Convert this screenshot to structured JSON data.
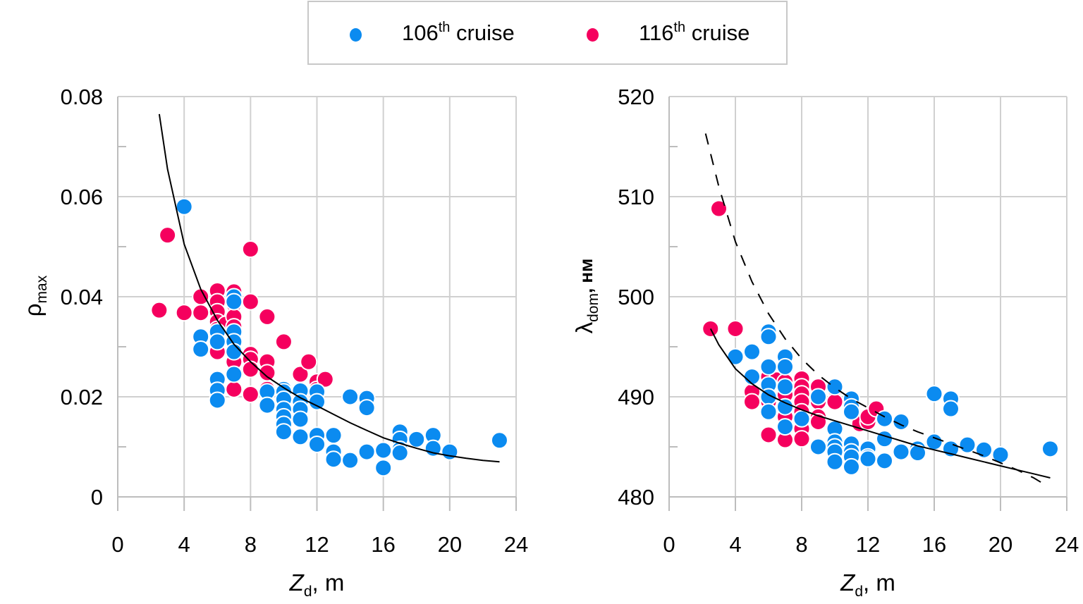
{
  "legend": {
    "items": [
      {
        "label_base": "106",
        "label_sup": "th",
        "label_rest": " cruise",
        "color": "#0b8bf0"
      },
      {
        "label_base": "116",
        "label_sup": "th",
        "label_rest": " cruise",
        "color": "#f5005e"
      }
    ]
  },
  "colors": {
    "series_106": "#0b8bf0",
    "series_116": "#f5005e",
    "grid": "#d0d0d0",
    "fit": "#000000"
  },
  "chart_data": [
    {
      "type": "scatter",
      "title": "",
      "xlabel": "Zd, m",
      "xlabel_main": "Z",
      "xlabel_sub": "d",
      "xlabel_unit": ", m",
      "ylabel": "ρmax",
      "ylabel_main": "ρ",
      "ylabel_sub": "max",
      "xlim": [
        0,
        24
      ],
      "ylim": [
        0,
        0.08
      ],
      "x_ticks": [
        0,
        4,
        8,
        12,
        16,
        20,
        24
      ],
      "x_tick_labels": [
        "0",
        "4",
        "8",
        "12",
        "16",
        "20",
        "24"
      ],
      "y_ticks": [
        0,
        0.02,
        0.04,
        0.06,
        0.08
      ],
      "y_tick_labels": [
        "0",
        "0.02",
        "0.04",
        "0.06",
        "0.08"
      ],
      "grid": true,
      "legend_position": "top-center",
      "series": [
        {
          "name": "106th cruise",
          "color": "#0b8bf0",
          "points": [
            [
              4,
              0.058
            ],
            [
              5,
              0.032
            ],
            [
              5,
              0.0295
            ],
            [
              6,
              0.033
            ],
            [
              6,
              0.031
            ],
            [
              6,
              0.0235
            ],
            [
              6,
              0.0213
            ],
            [
              6,
              0.0193
            ],
            [
              7,
              0.04
            ],
            [
              7,
              0.039
            ],
            [
              7,
              0.033
            ],
            [
              7,
              0.031
            ],
            [
              7,
              0.029
            ],
            [
              7,
              0.0245
            ],
            [
              9,
              0.021
            ],
            [
              9,
              0.0183
            ],
            [
              10,
              0.0215
            ],
            [
              10,
              0.021
            ],
            [
              10,
              0.0195
            ],
            [
              10,
              0.0175
            ],
            [
              10,
              0.016
            ],
            [
              10,
              0.0145
            ],
            [
              10,
              0.013
            ],
            [
              11,
              0.0212
            ],
            [
              11,
              0.019
            ],
            [
              11,
              0.0175
            ],
            [
              11,
              0.0155
            ],
            [
              11,
              0.012
            ],
            [
              12,
              0.021
            ],
            [
              12,
              0.019
            ],
            [
              12,
              0.0123
            ],
            [
              12,
              0.0105
            ],
            [
              13,
              0.0123
            ],
            [
              13,
              0.009
            ],
            [
              13,
              0.0075
            ],
            [
              14,
              0.02
            ],
            [
              14,
              0.0073
            ],
            [
              15,
              0.0197
            ],
            [
              15,
              0.0178
            ],
            [
              15,
              0.009
            ],
            [
              16,
              0.0093
            ],
            [
              16,
              0.0058
            ],
            [
              17,
              0.013
            ],
            [
              17,
              0.0115
            ],
            [
              17,
              0.0095
            ],
            [
              17,
              0.0088
            ],
            [
              18,
              0.0115
            ],
            [
              19,
              0.0123
            ],
            [
              19,
              0.0097
            ],
            [
              20,
              0.009
            ],
            [
              23,
              0.0113
            ]
          ]
        },
        {
          "name": "116th cruise",
          "color": "#f5005e",
          "points": [
            [
              2.5,
              0.0373
            ],
            [
              3,
              0.0523
            ],
            [
              4,
              0.0368
            ],
            [
              5,
              0.04
            ],
            [
              5,
              0.0368
            ],
            [
              6,
              0.0412
            ],
            [
              6,
              0.039
            ],
            [
              6,
              0.037
            ],
            [
              6,
              0.035
            ],
            [
              6,
              0.0335
            ],
            [
              6,
              0.031
            ],
            [
              6,
              0.029
            ],
            [
              6.5,
              0.0345
            ],
            [
              7,
              0.041
            ],
            [
              7,
              0.0385
            ],
            [
              7,
              0.036
            ],
            [
              7,
              0.034
            ],
            [
              7,
              0.0305
            ],
            [
              7,
              0.027
            ],
            [
              7,
              0.0215
            ],
            [
              8,
              0.0495
            ],
            [
              8,
              0.039
            ],
            [
              8,
              0.0285
            ],
            [
              8,
              0.0275
            ],
            [
              8,
              0.0255
            ],
            [
              8,
              0.0205
            ],
            [
              9,
              0.036
            ],
            [
              9,
              0.027
            ],
            [
              9,
              0.0248
            ],
            [
              9,
              0.0215
            ],
            [
              10,
              0.031
            ],
            [
              10,
              0.0215
            ],
            [
              11,
              0.0245
            ],
            [
              11,
              0.0205
            ],
            [
              11.5,
              0.027
            ],
            [
              12,
              0.023
            ],
            [
              12,
              0.0215
            ],
            [
              12.5,
              0.0235
            ]
          ]
        }
      ],
      "fit_curves": [
        {
          "style": "solid",
          "x_range": [
            2.5,
            23
          ],
          "points": [
            [
              2.5,
              0.0765
            ],
            [
              3,
              0.0655
            ],
            [
              4,
              0.0505
            ],
            [
              5,
              0.0415
            ],
            [
              6,
              0.0353
            ],
            [
              7,
              0.0305
            ],
            [
              8,
              0.027
            ],
            [
              9,
              0.024
            ],
            [
              10,
              0.0218
            ],
            [
              11,
              0.0198
            ],
            [
              12,
              0.0182
            ],
            [
              13,
              0.0165
            ],
            [
              14,
              0.0148
            ],
            [
              15,
              0.0133
            ],
            [
              16,
              0.0118
            ],
            [
              17,
              0.0107
            ],
            [
              18,
              0.0097
            ],
            [
              19,
              0.0088
            ],
            [
              20,
              0.0082
            ],
            [
              21,
              0.0077
            ],
            [
              22,
              0.0073
            ],
            [
              23,
              0.007
            ]
          ]
        }
      ]
    },
    {
      "type": "scatter",
      "title": "",
      "xlabel": "Zd, m",
      "xlabel_main": "Z",
      "xlabel_sub": "d",
      "xlabel_unit": ", m",
      "ylabel": "λdom, нм",
      "ylabel_main": "λ",
      "ylabel_sub": "dom",
      "ylabel_unit": ", нм",
      "xlim": [
        0,
        24
      ],
      "ylim": [
        480,
        520
      ],
      "x_ticks": [
        0,
        4,
        8,
        12,
        16,
        20,
        24
      ],
      "x_tick_labels": [
        "0",
        "4",
        "8",
        "12",
        "16",
        "20",
        "24"
      ],
      "y_ticks": [
        480,
        490,
        500,
        510,
        520
      ],
      "y_tick_labels": [
        "480",
        "490",
        "500",
        "510",
        "520"
      ],
      "grid": true,
      "legend_position": "top-center",
      "series": [
        {
          "name": "106th cruise",
          "color": "#0b8bf0",
          "points": [
            [
              4,
              494
            ],
            [
              5,
              494.5
            ],
            [
              5,
              492
            ],
            [
              6,
              496.5
            ],
            [
              6,
              496
            ],
            [
              6,
              493
            ],
            [
              6,
              491.2
            ],
            [
              6,
              490
            ],
            [
              6,
              488.5
            ],
            [
              7,
              494
            ],
            [
              7,
              493
            ],
            [
              7,
              491
            ],
            [
              7,
              489
            ],
            [
              7,
              487
            ],
            [
              8,
              487.8
            ],
            [
              9,
              490
            ],
            [
              9,
              485
            ],
            [
              10,
              491
            ],
            [
              10,
              486.8
            ],
            [
              10,
              485.5
            ],
            [
              10,
              485
            ],
            [
              10,
              484.5
            ],
            [
              10,
              483.5
            ],
            [
              11,
              489.8
            ],
            [
              11,
              489
            ],
            [
              11,
              488.5
            ],
            [
              11,
              485.3
            ],
            [
              11,
              484.5
            ],
            [
              11,
              484
            ],
            [
              11,
              483
            ],
            [
              12,
              484.8
            ],
            [
              12,
              484
            ],
            [
              12,
              483.8
            ],
            [
              13,
              487.8
            ],
            [
              13,
              485.8
            ],
            [
              13,
              483.6
            ],
            [
              14,
              487.5
            ],
            [
              14,
              484.5
            ],
            [
              15,
              484.8
            ],
            [
              15,
              484.4
            ],
            [
              16,
              490.3
            ],
            [
              16,
              485.5
            ],
            [
              17,
              489.8
            ],
            [
              17,
              488.8
            ],
            [
              17,
              484.8
            ],
            [
              18,
              485.2
            ],
            [
              19,
              484.7
            ],
            [
              20,
              484.2
            ],
            [
              23,
              484.8
            ]
          ]
        },
        {
          "name": "116th cruise",
          "color": "#f5005e",
          "points": [
            [
              2.5,
              496.8
            ],
            [
              3,
              508.8
            ],
            [
              4,
              496.8
            ],
            [
              5,
              490.5
            ],
            [
              5,
              489.5
            ],
            [
              6,
              492
            ],
            [
              6,
              491
            ],
            [
              6,
              490
            ],
            [
              6,
              489.5
            ],
            [
              6,
              486.2
            ],
            [
              6.5,
              491.7
            ],
            [
              7,
              491.5
            ],
            [
              7,
              490.2
            ],
            [
              7,
              489
            ],
            [
              7,
              488
            ],
            [
              7,
              485.7
            ],
            [
              8,
              491.8
            ],
            [
              8,
              491
            ],
            [
              8,
              490.3
            ],
            [
              8,
              489.5
            ],
            [
              8,
              488.5
            ],
            [
              8,
              487.5
            ],
            [
              8,
              486.8
            ],
            [
              8,
              485.8
            ],
            [
              9,
              491
            ],
            [
              9,
              489.5
            ],
            [
              9,
              488
            ],
            [
              9,
              487.5
            ],
            [
              10,
              490.8
            ],
            [
              10,
              489.5
            ],
            [
              11.5,
              487.3
            ],
            [
              12,
              487.5
            ],
            [
              12,
              488
            ],
            [
              12.5,
              488.8
            ]
          ]
        }
      ],
      "fit_curves": [
        {
          "style": "solid",
          "x_range": [
            2.5,
            23
          ],
          "points": [
            [
              2.5,
              496.8
            ],
            [
              3,
              495.2
            ],
            [
              4,
              492.8
            ],
            [
              5,
              491.3
            ],
            [
              6,
              490.2
            ],
            [
              7,
              489.4
            ],
            [
              8,
              488.7
            ],
            [
              9,
              488.1
            ],
            [
              10,
              487.6
            ],
            [
              11,
              487.1
            ],
            [
              12,
              486.6
            ],
            [
              13,
              486.1
            ],
            [
              14,
              485.6
            ],
            [
              15,
              485.1
            ],
            [
              16,
              484.7
            ],
            [
              17,
              484.3
            ],
            [
              18,
              483.9
            ],
            [
              19,
              483.5
            ],
            [
              20,
              483.1
            ],
            [
              21,
              482.7
            ],
            [
              22,
              482.3
            ],
            [
              23,
              481.9
            ]
          ]
        },
        {
          "style": "dashed",
          "x_range": [
            2.2,
            22.5
          ],
          "points": [
            [
              2.2,
              516.3
            ],
            [
              3,
              511
            ],
            [
              4,
              505.5
            ],
            [
              5,
              501.5
            ],
            [
              6,
              498.3
            ],
            [
              7,
              495.8
            ],
            [
              8,
              493.8
            ],
            [
              9,
              492.2
            ],
            [
              10,
              490.9
            ],
            [
              11,
              489.8
            ],
            [
              12,
              488.9
            ],
            [
              13,
              488
            ],
            [
              14,
              487.2
            ],
            [
              15,
              486.5
            ],
            [
              16,
              485.9
            ],
            [
              17,
              485.3
            ],
            [
              18,
              484.7
            ],
            [
              19,
              484.1
            ],
            [
              20,
              483.4
            ],
            [
              21,
              482.7
            ],
            [
              22,
              481.9
            ],
            [
              22.5,
              481.4
            ]
          ]
        }
      ]
    }
  ]
}
